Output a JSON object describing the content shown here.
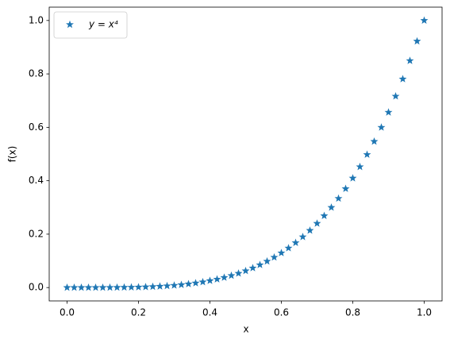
{
  "chart_data": {
    "type": "scatter",
    "xlabel": "x",
    "ylabel": "f(x)",
    "x": [
      0,
      0.02,
      0.04,
      0.06,
      0.08,
      0.1,
      0.12,
      0.14,
      0.16,
      0.18,
      0.2,
      0.22,
      0.24,
      0.26,
      0.28,
      0.3,
      0.32,
      0.34,
      0.36,
      0.38,
      0.4,
      0.42,
      0.44,
      0.46,
      0.48,
      0.5,
      0.52,
      0.54,
      0.56,
      0.58,
      0.6,
      0.62,
      0.64,
      0.66,
      0.68,
      0.7,
      0.72,
      0.74,
      0.76,
      0.78,
      0.8,
      0.82,
      0.84,
      0.86,
      0.88,
      0.9,
      0.92,
      0.94,
      0.96,
      0.98,
      1
    ],
    "series": [
      {
        "name": "y = x⁴",
        "color": "#1f77b4",
        "marker": "star",
        "values": [
          0,
          0,
          0,
          0,
          0,
          0.0001,
          0.0002,
          0.0004,
          0.0007,
          0.001,
          0.0016,
          0.0023,
          0.0033,
          0.0046,
          0.0061,
          0.0081,
          0.0105,
          0.0134,
          0.0168,
          0.0209,
          0.0256,
          0.0311,
          0.0375,
          0.0448,
          0.0531,
          0.0625,
          0.0731,
          0.085,
          0.0983,
          0.1132,
          0.1296,
          0.1478,
          0.1678,
          0.1897,
          0.2138,
          0.2401,
          0.2687,
          0.2999,
          0.3336,
          0.3701,
          0.4096,
          0.4521,
          0.4979,
          0.547,
          0.5997,
          0.6561,
          0.7164,
          0.7808,
          0.8493,
          0.9224,
          1
        ]
      }
    ],
    "xlim": [
      -0.05,
      1.05
    ],
    "ylim": [
      -0.05,
      1.05
    ],
    "xticks": [
      {
        "value": 0,
        "label": "0.0"
      },
      0.2,
      0.4,
      0.6,
      0.8,
      {
        "value": 1,
        "label": "1.0"
      }
    ],
    "yticks": [
      {
        "value": 0,
        "label": "0.0"
      },
      0.2,
      0.4,
      0.6,
      0.8,
      {
        "value": 1,
        "label": "1.0"
      }
    ],
    "grid": false,
    "legend": "upper left"
  }
}
